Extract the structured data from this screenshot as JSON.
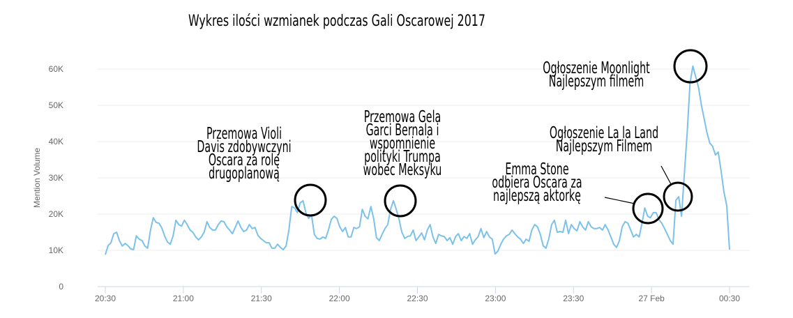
{
  "chart_data": {
    "type": "line",
    "title": "Wykres ilości wzmianek podczas Gali Oscarowej 2017",
    "xlabel": "",
    "ylabel": "Mention Volume",
    "x_start": "20:30",
    "x_end": "00:30",
    "x_ticks": [
      "20:30",
      "21:00",
      "21:30",
      "22:00",
      "22:30",
      "23:00",
      "23:30",
      "27 Feb",
      "00:30"
    ],
    "y_ticks": [
      "0",
      "10K",
      "20K",
      "30K",
      "40K",
      "50K",
      "60K"
    ],
    "ylim": [
      0,
      60000
    ],
    "grid": true,
    "series": [
      {
        "name": "Mention Volume",
        "color": "#7cc1ea",
        "unit": "thousands",
        "values": [
          8.8,
          11.3,
          12.1,
          14.6,
          15.0,
          12.7,
          11.2,
          11.9,
          11.3,
          10.4,
          10.2,
          14.0,
          13.1,
          12.7,
          11.2,
          10.6,
          15.6,
          19.0,
          17.7,
          17.5,
          16.2,
          14.0,
          12.3,
          11.7,
          14.0,
          18.3,
          17.1,
          16.7,
          18.3,
          17.1,
          15.6,
          15.0,
          13.7,
          12.9,
          13.7,
          15.0,
          17.9,
          16.3,
          15.6,
          15.6,
          17.1,
          18.1,
          17.9,
          16.5,
          15.6,
          14.6,
          16.3,
          18.1,
          16.3,
          15.2,
          15.6,
          17.1,
          16.0,
          16.3,
          14.2,
          13.3,
          12.7,
          12.1,
          12.1,
          10.6,
          10.6,
          11.7,
          10.8,
          10.2,
          11.2,
          15.6,
          22.1,
          21.7,
          20.4,
          23.1,
          23.7,
          20.4,
          18.8,
          19.8,
          14.4,
          13.3,
          13.1,
          13.7,
          13.3,
          15.6,
          18.5,
          19.4,
          18.8,
          16.5,
          15.2,
          16.3,
          13.7,
          13.7,
          16.3,
          16.0,
          16.5,
          21.3,
          19.4,
          18.7,
          22.1,
          18.8,
          13.5,
          12.7,
          14.4,
          16.0,
          17.1,
          21.3,
          23.7,
          21.3,
          18.5,
          15.0,
          13.3,
          13.8,
          14.0,
          15.6,
          12.7,
          13.7,
          14.8,
          12.9,
          15.6,
          17.1,
          13.7,
          11.9,
          14.4,
          14.0,
          13.8,
          12.7,
          13.5,
          11.7,
          13.8,
          14.6,
          12.7,
          13.8,
          13.3,
          14.6,
          11.7,
          12.9,
          13.8,
          16.0,
          13.5,
          15.2,
          13.7,
          13.1,
          9.0,
          9.8,
          11.7,
          13.1,
          14.0,
          14.4,
          15.6,
          14.6,
          13.7,
          13.1,
          11.9,
          13.1,
          12.5,
          15.6,
          17.1,
          16.5,
          14.4,
          11.3,
          10.6,
          13.1,
          17.1,
          18.3,
          15.0,
          15.2,
          15.0,
          18.3,
          14.6,
          17.1,
          16.0,
          15.4,
          17.9,
          16.5,
          15.6,
          17.9,
          16.5,
          16.0,
          16.0,
          16.3,
          15.6,
          17.1,
          15.6,
          13.7,
          11.7,
          10.8,
          12.7,
          16.5,
          17.9,
          17.5,
          15.6,
          13.7,
          14.4,
          13.7,
          17.5,
          21.7,
          19.4,
          19.0,
          20.4,
          20.4,
          18.5,
          17.5,
          16.0,
          14.4,
          12.7,
          11.7,
          23.8,
          24.8,
          19.4,
          31.0,
          42.5,
          56.0,
          60.8,
          57.9,
          55.0,
          50.2,
          46.3,
          42.5,
          39.6,
          38.7,
          36.3,
          37.1,
          31.9,
          26.2,
          22.3,
          10.2
        ]
      }
    ],
    "annotations": [
      {
        "lines": [
          "Przemowa Violi",
          "Davis zdobywczyni",
          "Oscara za rolę",
          "drugoplanową"
        ]
      },
      {
        "lines": [
          "Przemowa Gela",
          "Garci Bernala i",
          "wspomnienie",
          "polityki Trumpa",
          "wobec Meksyku"
        ]
      },
      {
        "lines": [
          "Emma Stone",
          "odbiera Oscara za",
          "najlepszą aktorkę"
        ]
      },
      {
        "lines": [
          "Ogłoszenie La la Land",
          "Najlepszym Filmem"
        ]
      },
      {
        "lines": [
          "Ogłoszenie Moonlight",
          "Najlepszym filmem"
        ]
      }
    ]
  }
}
